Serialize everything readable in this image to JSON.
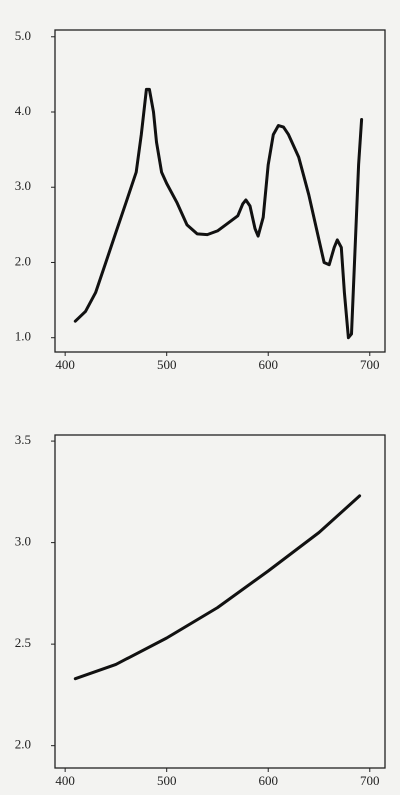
{
  "chart_data": [
    {
      "type": "line",
      "x": [
        410,
        420,
        430,
        440,
        450,
        460,
        470,
        475,
        480,
        483,
        487,
        490,
        495,
        500,
        510,
        520,
        530,
        540,
        550,
        560,
        570,
        575,
        578,
        582,
        587,
        590,
        595,
        600,
        605,
        610,
        615,
        620,
        630,
        640,
        650,
        655,
        660,
        665,
        668,
        672,
        675,
        679,
        682,
        685,
        689,
        692
      ],
      "values": [
        1.22,
        1.35,
        1.6,
        2.0,
        2.4,
        2.8,
        3.2,
        3.7,
        4.3,
        4.3,
        4.0,
        3.6,
        3.2,
        3.05,
        2.8,
        2.5,
        2.38,
        2.37,
        2.42,
        2.52,
        2.62,
        2.78,
        2.83,
        2.75,
        2.45,
        2.35,
        2.6,
        3.3,
        3.7,
        3.82,
        3.8,
        3.7,
        3.4,
        2.9,
        2.3,
        2.0,
        1.97,
        2.2,
        2.3,
        2.2,
        1.6,
        1.0,
        1.05,
        2.0,
        3.3,
        3.9
      ],
      "color": "#111111",
      "xlim": [
        390,
        715
      ],
      "ylim": [
        0.81,
        5.09
      ],
      "xticks": [
        400,
        500,
        600,
        700
      ],
      "yticks": [
        {
          "value": 1,
          "label": "1.0"
        },
        {
          "value": 2,
          "label": "2.0"
        },
        {
          "value": 3,
          "label": "3.0"
        },
        {
          "value": 4,
          "label": "4.0"
        },
        {
          "value": 5,
          "label": "5.0"
        }
      ]
    },
    {
      "type": "line",
      "x": [
        410,
        450,
        500,
        550,
        600,
        650,
        690
      ],
      "values": [
        2.33,
        2.4,
        2.53,
        2.68,
        2.86,
        3.05,
        3.23
      ],
      "color": "#111111",
      "xlim": [
        390,
        715
      ],
      "ylim": [
        1.89,
        3.53
      ],
      "xticks": [
        400,
        500,
        600,
        700
      ],
      "yticks": [
        {
          "value": 2,
          "label": "2.0"
        },
        2.5,
        {
          "value": 3,
          "label": "3.0"
        },
        3.5
      ]
    }
  ]
}
